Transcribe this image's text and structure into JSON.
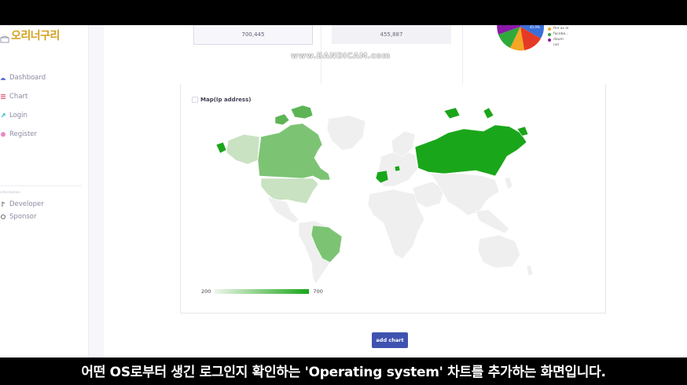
{
  "brand": {
    "name": "오리너구리"
  },
  "sidebar": {
    "items": [
      {
        "label": "Dashboard",
        "icon": "dashboard-icon"
      },
      {
        "label": "Chart",
        "icon": "chart-icon"
      },
      {
        "label": "Login",
        "icon": "login-icon"
      },
      {
        "label": "Register",
        "icon": "register-icon"
      }
    ],
    "section_label": "information",
    "items2": [
      {
        "label": "Developer",
        "icon": "developer-icon"
      },
      {
        "label": "Sponsor",
        "icon": "sponsor-icon"
      }
    ]
  },
  "cards": {
    "card1_value": "700,445",
    "card2_value": "455,887"
  },
  "pie": {
    "center_label": "45.0%",
    "legend": [
      "fire as le",
      "facebo...",
      "daum",
      "nel"
    ],
    "colors": {
      "blue": "#3a6fd8",
      "red": "#e53a26",
      "orange": "#f5a623",
      "green": "#2faa3a",
      "purple": "#8a1aa8"
    }
  },
  "map": {
    "title": "Map(Ip address)",
    "scale_min": "200",
    "scale_max": "700",
    "colors": {
      "high": "#1aa61a",
      "mid": "#7cc474",
      "low": "#c9e2c2",
      "none": "#efefef"
    }
  },
  "actions": {
    "add_chart": "add chart"
  },
  "watermark": "www.BANDICAM.com",
  "subtitle": "어떤 OS로부터 생긴 로그인지 확인하는 'Operating system' 차트를 추가하는 화면입니다."
}
